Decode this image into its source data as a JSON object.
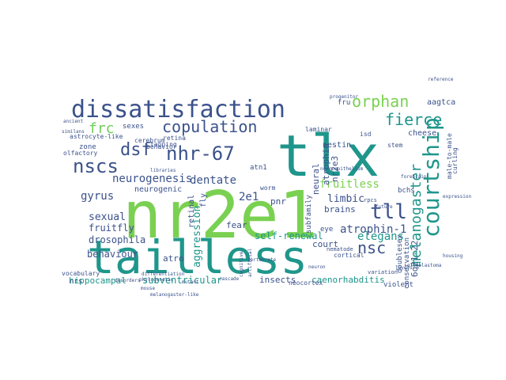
{
  "words": [
    {
      "text": "nr2e1",
      "color": "#7ad151"
    },
    {
      "text": "tailless",
      "color": "#1f968b"
    },
    {
      "text": "tlx",
      "color": "#1f968b"
    },
    {
      "text": "dissatisfaction",
      "color": "#3b528b"
    },
    {
      "text": "courtship",
      "color": "#1f968b"
    },
    {
      "text": "orphan",
      "color": "#7ad151"
    },
    {
      "text": "copulation",
      "color": "#3b528b"
    },
    {
      "text": "nhr-67",
      "color": "#3b528b"
    },
    {
      "text": "dsf",
      "color": "#3b528b"
    },
    {
      "text": "nscs",
      "color": "#3b528b"
    },
    {
      "text": "frc",
      "color": "#6ece58"
    },
    {
      "text": "fierce",
      "color": "#1f968b"
    },
    {
      "text": "melanogaster",
      "color": "#1f968b"
    },
    {
      "text": "tll",
      "color": "#3b528b"
    },
    {
      "text": "atrophin-1",
      "color": "#3b528b"
    },
    {
      "text": "fruitless",
      "color": "#7ad151"
    },
    {
      "text": "neurogenesis",
      "color": "#3b528b"
    },
    {
      "text": "dentate",
      "color": "#3b528b"
    },
    {
      "text": "nsc",
      "color": "#3b528b"
    },
    {
      "text": "elegans",
      "color": "#1f968b"
    },
    {
      "text": "2e1",
      "color": "#3b528b"
    },
    {
      "text": "pnr",
      "color": "#3b528b"
    },
    {
      "text": "gyrus",
      "color": "#3b528b"
    },
    {
      "text": "sexual",
      "color": "#3b528b"
    },
    {
      "text": "fruitfly",
      "color": "#3b528b"
    },
    {
      "text": "drosophila",
      "color": "#3b528b"
    },
    {
      "text": "behaviour",
      "color": "#3b528b"
    },
    {
      "text": "self-renewal",
      "color": "#1f968b"
    },
    {
      "text": "aggression",
      "color": "#1f968b"
    },
    {
      "text": "limbic",
      "color": "#3b528b"
    },
    {
      "text": "subventricular",
      "color": "#1f968b"
    },
    {
      "text": "hippocampal",
      "color": "#1f968b"
    },
    {
      "text": "caenorhabditis",
      "color": "#1f968b"
    },
    {
      "text": "insects",
      "color": "#3b528b"
    },
    {
      "text": "6q21-22",
      "color": "#3b528b"
    },
    {
      "text": "brains",
      "color": "#3b528b"
    },
    {
      "text": "court",
      "color": "#3b528b"
    },
    {
      "text": "fear",
      "color": "#3b528b"
    },
    {
      "text": "atro",
      "color": "#3b528b"
    },
    {
      "text": "bchs",
      "color": "#3b528b"
    },
    {
      "text": "nestin",
      "color": "#3b528b"
    },
    {
      "text": "nr2e3",
      "color": "#3b528b"
    },
    {
      "text": "atrophin",
      "color": "#3b528b"
    },
    {
      "text": "cheese",
      "color": "#3b528b"
    },
    {
      "text": "aagtca",
      "color": "#3b528b"
    },
    {
      "text": "fru",
      "color": "#3b528b"
    },
    {
      "text": "neural",
      "color": "#3b528b"
    },
    {
      "text": "neurogenic",
      "color": "#3b528b"
    },
    {
      "text": "sexes",
      "color": "#3b528b"
    },
    {
      "text": "zone",
      "color": "#3b528b"
    },
    {
      "text": "atn1",
      "color": "#3b528b"
    },
    {
      "text": "worm",
      "color": "#3b528b"
    },
    {
      "text": "retinal",
      "color": "#3b528b"
    },
    {
      "text": "fly",
      "color": "#3b528b"
    },
    {
      "text": "subfamily",
      "color": "#3b528b"
    },
    {
      "text": "eye",
      "color": "#3b528b"
    },
    {
      "text": "cortical",
      "color": "#3b528b"
    },
    {
      "text": "doublesex",
      "color": "#3b528b"
    },
    {
      "text": "conservation",
      "color": "#3b528b"
    },
    {
      "text": "neocortex",
      "color": "#3b528b"
    },
    {
      "text": "violent",
      "color": "#3b528b"
    },
    {
      "text": "nrs",
      "color": "#3b528b"
    },
    {
      "text": "vocabulary",
      "color": "#3b528b"
    },
    {
      "text": "olfactory",
      "color": "#3b528b"
    },
    {
      "text": "astrocyte-like",
      "color": "#3b528b"
    },
    {
      "text": "behavior",
      "color": "#3b528b"
    },
    {
      "text": "retina",
      "color": "#3b528b"
    },
    {
      "text": "cerebrum",
      "color": "#3b528b"
    },
    {
      "text": "tapping",
      "color": "#3b528b"
    },
    {
      "text": "isd",
      "color": "#3b528b"
    },
    {
      "text": "laminar",
      "color": "#3b528b"
    },
    {
      "text": "male-to-male",
      "color": "#3b528b"
    },
    {
      "text": "curling",
      "color": "#3b528b"
    },
    {
      "text": "stem",
      "color": "#3b528b"
    },
    {
      "text": "nematode",
      "color": "#3b528b"
    },
    {
      "text": "rpcs",
      "color": "#3b528b"
    },
    {
      "text": "variation",
      "color": "#3b528b"
    },
    {
      "text": "artificial",
      "color": "#3b528b"
    },
    {
      "text": "cognitive",
      "color": "#3b528b"
    },
    {
      "text": "mouse",
      "color": "#3b528b"
    },
    {
      "text": "vertebrate",
      "color": "#3b528b"
    },
    {
      "text": "expression",
      "color": "#3b528b"
    },
    {
      "text": "neuroepithelium",
      "color": "#3b528b"
    },
    {
      "text": "progenitor",
      "color": "#3b528b"
    },
    {
      "text": "layers",
      "color": "#3b528b"
    },
    {
      "text": "melanogaster-like",
      "color": "#3b528b"
    },
    {
      "text": "gliablastoma",
      "color": "#3b528b"
    },
    {
      "text": "forebrain",
      "color": "#3b528b"
    },
    {
      "text": "ancient",
      "color": "#3b528b"
    },
    {
      "text": "similans",
      "color": "#3b528b"
    },
    {
      "text": "libraries",
      "color": "#3b528b"
    },
    {
      "text": "mutant",
      "color": "#3b528b"
    },
    {
      "text": "differentiation",
      "color": "#3b528b"
    },
    {
      "text": "phylogenetic",
      "color": "#3b528b"
    },
    {
      "text": "disorders",
      "color": "#3b528b"
    },
    {
      "text": "neuron",
      "color": "#3b528b"
    },
    {
      "text": "reference",
      "color": "#3b528b"
    },
    {
      "text": "housing",
      "color": "#3b528b"
    },
    {
      "text": "future",
      "color": "#3b528b"
    },
    {
      "text": "cascade",
      "color": "#3b528b"
    }
  ]
}
